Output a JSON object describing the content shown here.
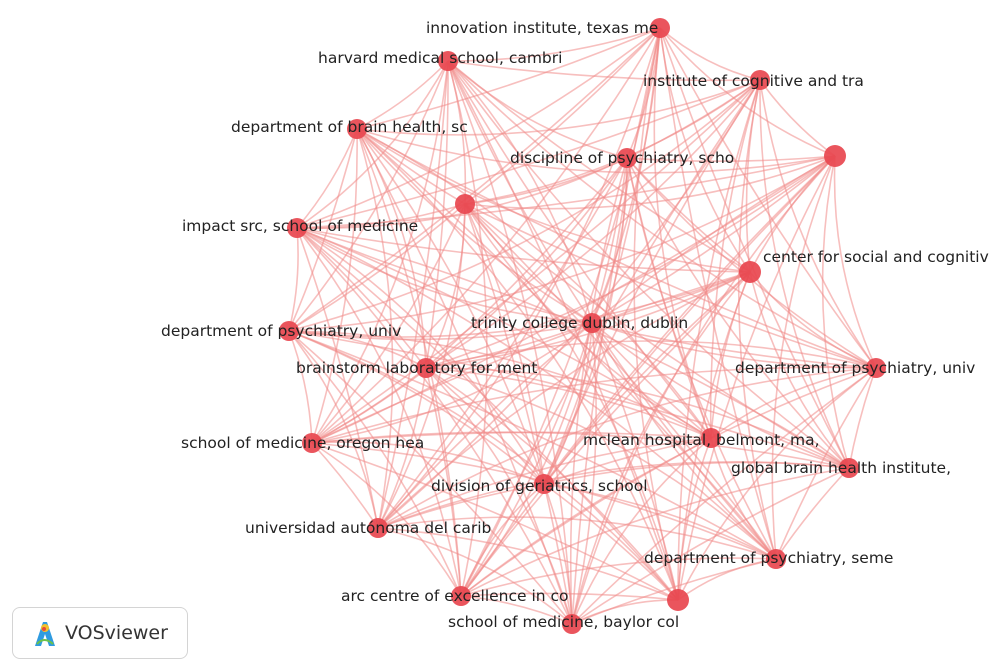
{
  "app": {
    "brand_label": "VOSviewer",
    "brand_icon": "vosviewer-logo-icon"
  },
  "network": {
    "node_color": "#e8474f",
    "edge_color": "#f08a88",
    "nodes": [
      {
        "label": "innovation institute, texas me"
      },
      {
        "label": "harvard medical school, cambri"
      },
      {
        "label": "institute of cognitive and tra"
      },
      {
        "label": "department of brain health, sc"
      },
      {
        "label": "discipline of psychiatry, scho"
      },
      {
        "label": ""
      },
      {
        "label": ""
      },
      {
        "label": "impact src, school of medicine"
      },
      {
        "label": "center for social and cognitiv"
      },
      {
        "label": "department of psychiatry, univ"
      },
      {
        "label": "trinity college dublin, dublin"
      },
      {
        "label": "brainstorm laboratory for ment"
      },
      {
        "label": "department of psychiatry, univ"
      },
      {
        "label": "school of medicine, oregon hea"
      },
      {
        "label": "mclean hospital, belmont, ma,"
      },
      {
        "label": "global brain health institute,"
      },
      {
        "label": "division of geriatrics, school"
      },
      {
        "label": "universidad autónoma del carib"
      },
      {
        "label": "department of psychiatry, seme"
      },
      {
        "label": "arc centre of excellence in co"
      },
      {
        "label": ""
      },
      {
        "label": "school of medicine, baylor col"
      }
    ]
  }
}
